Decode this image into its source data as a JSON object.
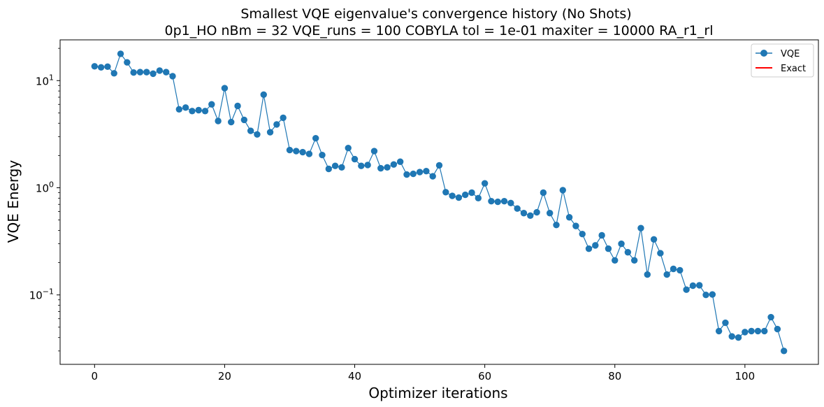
{
  "chart_data": {
    "type": "line",
    "title": "Smallest VQE eigenvalue's convergence history (No Shots)",
    "subtitle": "0p1_HO    nBm = 32    VQE_runs = 100    COBYLA    tol = 1e-01    maxiter = 10000    RA_r1_rl",
    "xlabel": "Optimizer iterations",
    "ylabel": "VQE Energy",
    "xlim": [
      -5.3,
      111.3
    ],
    "ylim": [
      0.0225,
      24
    ],
    "yscale": "log",
    "grid": false,
    "legend_position": "top-right",
    "x_ticks": [
      0,
      20,
      40,
      60,
      80,
      100
    ],
    "x_tick_labels": [
      "0",
      "20",
      "40",
      "60",
      "80",
      "100"
    ],
    "y_ticks": [
      0.1,
      1,
      10
    ],
    "y_tick_labels": [
      {
        "base": "10",
        "exp": "−1"
      },
      {
        "base": "10",
        "exp": "0"
      },
      {
        "base": "10",
        "exp": "1"
      }
    ],
    "series": [
      {
        "name": "VQE",
        "color": "#1f77b4",
        "marker": "circle",
        "values": [
          13.6,
          13.3,
          13.5,
          11.7,
          17.8,
          14.8,
          11.9,
          12.0,
          12.0,
          11.6,
          12.4,
          12.0,
          11.0,
          5.4,
          5.6,
          5.2,
          5.3,
          5.2,
          6.0,
          4.2,
          8.5,
          4.1,
          5.8,
          4.3,
          3.4,
          3.15,
          7.4,
          3.3,
          3.9,
          4.5,
          2.25,
          2.2,
          2.15,
          2.07,
          2.9,
          2.02,
          1.5,
          1.6,
          1.55,
          2.35,
          1.85,
          1.6,
          1.63,
          2.2,
          1.52,
          1.55,
          1.65,
          1.75,
          1.33,
          1.35,
          1.4,
          1.43,
          1.28,
          1.62,
          0.91,
          0.84,
          0.81,
          0.86,
          0.9,
          0.8,
          1.1,
          0.75,
          0.74,
          0.75,
          0.72,
          0.64,
          0.58,
          0.55,
          0.59,
          0.9,
          0.58,
          0.45,
          0.95,
          0.53,
          0.44,
          0.37,
          0.27,
          0.29,
          0.36,
          0.27,
          0.21,
          0.3,
          0.25,
          0.21,
          0.42,
          0.155,
          0.33,
          0.245,
          0.155,
          0.175,
          0.17,
          0.112,
          0.122,
          0.123,
          0.1,
          0.101,
          0.046,
          0.055,
          0.041,
          0.04,
          0.045,
          0.046,
          0.046,
          0.046,
          0.062,
          0.048,
          0.03
        ]
      },
      {
        "name": "Exact",
        "color": "#ff0000",
        "marker": "none",
        "values": []
      }
    ]
  }
}
